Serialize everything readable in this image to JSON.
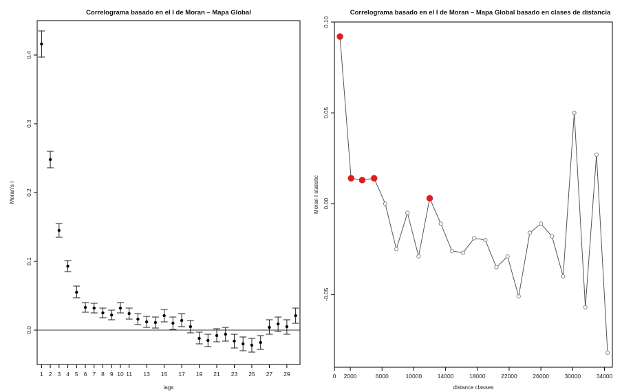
{
  "chart_data": [
    {
      "type": "scatter",
      "title": "Correlograma basado en el I de Moran – Mapa Global",
      "xlabel": "lags",
      "ylabel": "Moran's I",
      "xlim": [
        0.5,
        30.5
      ],
      "ylim": [
        -0.05,
        0.45
      ],
      "xticks": [
        1,
        2,
        3,
        4,
        5,
        6,
        7,
        8,
        9,
        10,
        11,
        13,
        15,
        17,
        19,
        21,
        23,
        25,
        27,
        29
      ],
      "xtick_labels": [
        "1",
        "2",
        "3",
        "4",
        "5",
        "6",
        "7",
        "8",
        "9",
        "10",
        "11",
        "13",
        "15",
        "17",
        "19",
        "21",
        "23",
        "25",
        "27",
        "29"
      ],
      "yticks": [
        0.0,
        0.1,
        0.2,
        0.3,
        0.4
      ],
      "ytick_labels": [
        "0.0",
        "0.1",
        "0.2",
        "0.3",
        "0.4"
      ],
      "reference_line": 0,
      "error_bars": true,
      "points": [
        {
          "x": 1,
          "y": 0.416,
          "lo": 0.397,
          "hi": 0.435
        },
        {
          "x": 2,
          "y": 0.248,
          "lo": 0.236,
          "hi": 0.26
        },
        {
          "x": 3,
          "y": 0.145,
          "lo": 0.135,
          "hi": 0.155
        },
        {
          "x": 4,
          "y": 0.093,
          "lo": 0.085,
          "hi": 0.101
        },
        {
          "x": 5,
          "y": 0.055,
          "lo": 0.047,
          "hi": 0.064
        },
        {
          "x": 6,
          "y": 0.033,
          "lo": 0.026,
          "hi": 0.04
        },
        {
          "x": 7,
          "y": 0.032,
          "lo": 0.025,
          "hi": 0.039
        },
        {
          "x": 8,
          "y": 0.025,
          "lo": 0.018,
          "hi": 0.032
        },
        {
          "x": 9,
          "y": 0.022,
          "lo": 0.015,
          "hi": 0.029
        },
        {
          "x": 10,
          "y": 0.032,
          "lo": 0.025,
          "hi": 0.04
        },
        {
          "x": 11,
          "y": 0.024,
          "lo": 0.016,
          "hi": 0.032
        },
        {
          "x": 12,
          "y": 0.016,
          "lo": 0.008,
          "hi": 0.024
        },
        {
          "x": 13,
          "y": 0.012,
          "lo": 0.004,
          "hi": 0.02
        },
        {
          "x": 14,
          "y": 0.011,
          "lo": 0.003,
          "hi": 0.019
        },
        {
          "x": 15,
          "y": 0.021,
          "lo": 0.012,
          "hi": 0.03
        },
        {
          "x": 16,
          "y": 0.01,
          "lo": 0.001,
          "hi": 0.019
        },
        {
          "x": 17,
          "y": 0.014,
          "lo": 0.005,
          "hi": 0.024
        },
        {
          "x": 18,
          "y": 0.005,
          "lo": -0.004,
          "hi": 0.014
        },
        {
          "x": 19,
          "y": -0.012,
          "lo": -0.02,
          "hi": -0.003
        },
        {
          "x": 20,
          "y": -0.015,
          "lo": -0.024,
          "hi": -0.006
        },
        {
          "x": 21,
          "y": -0.008,
          "lo": -0.017,
          "hi": 0.002
        },
        {
          "x": 22,
          "y": -0.006,
          "lo": -0.016,
          "hi": 0.004
        },
        {
          "x": 23,
          "y": -0.016,
          "lo": -0.026,
          "hi": -0.006
        },
        {
          "x": 24,
          "y": -0.02,
          "lo": -0.03,
          "hi": -0.01
        },
        {
          "x": 25,
          "y": -0.022,
          "lo": -0.032,
          "hi": -0.012
        },
        {
          "x": 26,
          "y": -0.018,
          "lo": -0.028,
          "hi": -0.008
        },
        {
          "x": 27,
          "y": 0.004,
          "lo": -0.006,
          "hi": 0.015
        },
        {
          "x": 28,
          "y": 0.009,
          "lo": -0.002,
          "hi": 0.019
        },
        {
          "x": 29,
          "y": 0.005,
          "lo": -0.006,
          "hi": 0.015
        },
        {
          "x": 30,
          "y": 0.021,
          "lo": 0.01,
          "hi": 0.032
        }
      ]
    },
    {
      "type": "line",
      "title": "Correlograma basado en el I de Moran – Mapa Global basado en clases de distancia",
      "xlabel": "distance classes",
      "ylabel": "Moran I statistic",
      "xlim": [
        0,
        35000
      ],
      "ylim": [
        -0.09,
        0.1
      ],
      "xticks": [
        0,
        2000,
        6000,
        10000,
        14000,
        18000,
        22000,
        26000,
        30000,
        34000
      ],
      "xtick_labels": [
        "0",
        "2000",
        "6000",
        "10000",
        "14000",
        "18000",
        "22000",
        "26000",
        "30000",
        "34000"
      ],
      "yticks": [
        0.1,
        0.05,
        0.0,
        -0.05
      ],
      "ytick_labels": [
        "0.10",
        "0.05",
        "0.00",
        "-0.05"
      ],
      "colors": {
        "highlight": "#e41a1c",
        "normal": "#888888",
        "line": "#555555"
      },
      "points": [
        {
          "x": 700,
          "y": 0.092,
          "sig": true
        },
        {
          "x": 2100,
          "y": 0.014,
          "sig": true
        },
        {
          "x": 3500,
          "y": 0.013,
          "sig": true
        },
        {
          "x": 5000,
          "y": 0.014,
          "sig": true
        },
        {
          "x": 6400,
          "y": 0.0,
          "sig": false
        },
        {
          "x": 7800,
          "y": -0.025,
          "sig": false
        },
        {
          "x": 9200,
          "y": -0.005,
          "sig": false
        },
        {
          "x": 10600,
          "y": -0.029,
          "sig": false
        },
        {
          "x": 12000,
          "y": 0.003,
          "sig": true
        },
        {
          "x": 13400,
          "y": -0.011,
          "sig": false
        },
        {
          "x": 14800,
          "y": -0.026,
          "sig": false
        },
        {
          "x": 16200,
          "y": -0.027,
          "sig": false
        },
        {
          "x": 17600,
          "y": -0.019,
          "sig": false
        },
        {
          "x": 19000,
          "y": -0.02,
          "sig": false
        },
        {
          "x": 20400,
          "y": -0.035,
          "sig": false
        },
        {
          "x": 21800,
          "y": -0.029,
          "sig": false
        },
        {
          "x": 23200,
          "y": -0.051,
          "sig": false
        },
        {
          "x": 24600,
          "y": -0.016,
          "sig": false
        },
        {
          "x": 26000,
          "y": -0.011,
          "sig": false
        },
        {
          "x": 27400,
          "y": -0.018,
          "sig": false
        },
        {
          "x": 28800,
          "y": -0.04,
          "sig": false
        },
        {
          "x": 30200,
          "y": 0.05,
          "sig": false
        },
        {
          "x": 31600,
          "y": -0.057,
          "sig": false
        },
        {
          "x": 33000,
          "y": 0.027,
          "sig": false
        },
        {
          "x": 34400,
          "y": -0.082,
          "sig": false
        }
      ]
    }
  ]
}
